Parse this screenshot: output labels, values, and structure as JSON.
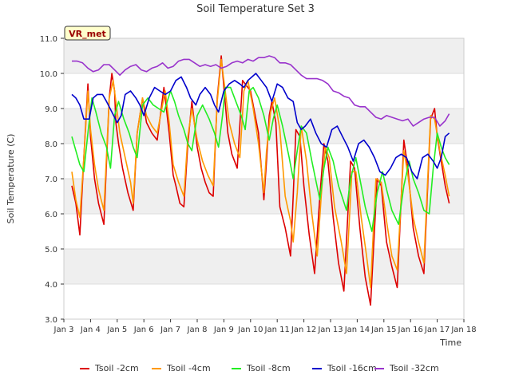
{
  "chart_data": {
    "type": "line",
    "title": "Soil Temperature Set 3",
    "xlabel": "Time",
    "ylabel": "Soil Temperature (C)",
    "station_label": "VR_met",
    "xlim": [
      3,
      18
    ],
    "ylim": [
      3.0,
      11.0
    ],
    "xticks": [
      {
        "x": 3,
        "label": "Jan 3"
      },
      {
        "x": 4,
        "label": "Jan 4"
      },
      {
        "x": 5,
        "label": "Jan 5"
      },
      {
        "x": 6,
        "label": "Jan 6"
      },
      {
        "x": 7,
        "label": "Jan 7"
      },
      {
        "x": 8,
        "label": "Jan 8"
      },
      {
        "x": 9,
        "label": "Jan 9"
      },
      {
        "x": 10,
        "label": "Jan 10"
      },
      {
        "x": 11,
        "label": "Jan 11"
      },
      {
        "x": 12,
        "label": "Jan 12"
      },
      {
        "x": 13,
        "label": "Jan 13"
      },
      {
        "x": 14,
        "label": "Jan 14"
      },
      {
        "x": 15,
        "label": "Jan 15"
      },
      {
        "x": 16,
        "label": "Jan 16"
      },
      {
        "x": 17,
        "label": "Jan 17"
      },
      {
        "x": 18,
        "label": "Jan 18"
      }
    ],
    "yticks": [
      {
        "y": 3.0,
        "label": "3.0"
      },
      {
        "y": 4.0,
        "label": "4.0"
      },
      {
        "y": 5.0,
        "label": "5.0"
      },
      {
        "y": 6.0,
        "label": "6.0"
      },
      {
        "y": 7.0,
        "label": "7.0"
      },
      {
        "y": 8.0,
        "label": "8.0"
      },
      {
        "y": 9.0,
        "label": "9.0"
      },
      {
        "y": 10.0,
        "label": "10.0"
      },
      {
        "y": 11.0,
        "label": "11.0"
      }
    ],
    "legend_position": "bottom",
    "series": [
      {
        "name": "Tsoil -2cm",
        "color": "#dd0000",
        "x": [
          3.3,
          3.45,
          3.6,
          3.75,
          3.9,
          4.0,
          4.15,
          4.3,
          4.5,
          4.7,
          4.8,
          4.9,
          4.95,
          5.05,
          5.2,
          5.4,
          5.6,
          5.75,
          5.95,
          6.1,
          6.3,
          6.5,
          6.75,
          6.95,
          7.1,
          7.2,
          7.35,
          7.5,
          7.65,
          7.8,
          8.0,
          8.15,
          8.3,
          8.45,
          8.6,
          8.75,
          8.9,
          9.0,
          9.15,
          9.3,
          9.5,
          9.7,
          9.8,
          9.9,
          10.0,
          10.1,
          10.3,
          10.5,
          10.6,
          10.7,
          10.8,
          10.95,
          11.1,
          11.3,
          11.5,
          11.6,
          11.7,
          11.85,
          12.0,
          12.2,
          12.4,
          12.6,
          12.75,
          12.9,
          13.1,
          13.3,
          13.5,
          13.75,
          13.9,
          14.1,
          14.3,
          14.5,
          14.75,
          14.9,
          15.1,
          15.3,
          15.5,
          15.75,
          15.9,
          16.1,
          16.3,
          16.5,
          16.75,
          16.9,
          17.0,
          17.15,
          17.3,
          17.45
        ],
        "y": [
          6.8,
          6.3,
          5.4,
          7.6,
          9.7,
          8.2,
          7.0,
          6.3,
          5.7,
          9.3,
          10.0,
          9.5,
          8.6,
          8.0,
          7.3,
          6.6,
          6.1,
          8.3,
          9.3,
          8.6,
          8.3,
          8.1,
          9.6,
          8.3,
          7.1,
          6.8,
          6.3,
          6.2,
          8.0,
          9.2,
          7.9,
          7.3,
          6.9,
          6.6,
          6.5,
          9.3,
          10.5,
          9.6,
          8.3,
          7.7,
          7.3,
          9.8,
          9.7,
          9.6,
          9.5,
          9.1,
          8.3,
          6.4,
          7.5,
          8.8,
          9.2,
          8.6,
          6.2,
          5.6,
          4.8,
          6.5,
          8.4,
          8.2,
          6.8,
          5.4,
          4.3,
          6.5,
          8.0,
          7.5,
          5.9,
          4.6,
          3.8,
          7.5,
          7.3,
          5.6,
          4.2,
          3.4,
          7.0,
          6.8,
          5.2,
          4.5,
          3.9,
          8.1,
          7.3,
          5.6,
          4.8,
          4.3,
          8.7,
          9.0,
          8.2,
          7.5,
          6.8,
          6.3
        ]
      },
      {
        "name": "Tsoil -4cm",
        "color": "#ff9900",
        "x": [
          3.3,
          3.45,
          3.6,
          3.75,
          3.9,
          4.0,
          4.15,
          4.3,
          4.5,
          4.7,
          4.85,
          4.95,
          5.1,
          5.3,
          5.5,
          5.6,
          5.75,
          5.95,
          6.1,
          6.3,
          6.5,
          6.8,
          6.95,
          7.1,
          7.3,
          7.5,
          7.65,
          7.8,
          8.0,
          8.2,
          8.4,
          8.6,
          8.75,
          8.9,
          9.0,
          9.2,
          9.4,
          9.6,
          9.75,
          9.9,
          10.1,
          10.3,
          10.5,
          10.6,
          10.75,
          10.9,
          11.1,
          11.3,
          11.5,
          11.6,
          11.75,
          11.9,
          12.1,
          12.3,
          12.5,
          12.65,
          12.8,
          12.95,
          13.15,
          13.4,
          13.6,
          13.8,
          13.95,
          14.15,
          14.35,
          14.5,
          14.7,
          14.9,
          15.1,
          15.3,
          15.5,
          15.75,
          15.9,
          16.1,
          16.3,
          16.5,
          16.75,
          16.9,
          17.1,
          17.3,
          17.45
        ],
        "y": [
          7.2,
          6.4,
          5.9,
          7.6,
          9.5,
          8.4,
          7.4,
          6.7,
          6.1,
          9.3,
          9.8,
          9.2,
          8.3,
          7.6,
          6.9,
          6.3,
          8.3,
          9.3,
          8.8,
          8.5,
          8.3,
          9.5,
          8.6,
          7.4,
          6.9,
          6.5,
          8.2,
          9.0,
          8.1,
          7.5,
          7.1,
          6.8,
          9.2,
          10.4,
          9.8,
          8.6,
          8.0,
          7.6,
          9.5,
          9.8,
          9.0,
          8.0,
          6.6,
          7.8,
          8.9,
          9.3,
          8.4,
          6.5,
          5.8,
          5.2,
          6.6,
          8.5,
          7.5,
          6.0,
          4.8,
          6.5,
          7.9,
          7.6,
          6.2,
          5.2,
          4.3,
          7.2,
          7.2,
          5.9,
          4.8,
          3.9,
          7.0,
          6.9,
          5.8,
          4.8,
          4.4,
          7.8,
          7.1,
          5.9,
          5.2,
          4.6,
          8.8,
          8.7,
          7.8,
          7.1,
          6.5
        ]
      },
      {
        "name": "Tsoil -8cm",
        "color": "#22ee22",
        "x": [
          3.3,
          3.45,
          3.6,
          3.75,
          3.9,
          4.05,
          4.2,
          4.4,
          4.6,
          4.75,
          4.9,
          5.05,
          5.25,
          5.45,
          5.6,
          5.75,
          5.95,
          6.15,
          6.35,
          6.55,
          6.75,
          7.0,
          7.15,
          7.3,
          7.5,
          7.65,
          7.8,
          8.0,
          8.2,
          8.45,
          8.65,
          8.8,
          8.95,
          9.05,
          9.25,
          9.45,
          9.65,
          9.8,
          9.95,
          10.1,
          10.3,
          10.5,
          10.7,
          10.85,
          11.0,
          11.2,
          11.45,
          11.6,
          11.75,
          11.9,
          12.1,
          12.3,
          12.6,
          12.75,
          12.9,
          13.1,
          13.3,
          13.6,
          13.75,
          13.95,
          14.1,
          14.3,
          14.55,
          14.75,
          14.95,
          15.1,
          15.3,
          15.55,
          15.75,
          15.95,
          16.1,
          16.3,
          16.5,
          16.7,
          16.85,
          17.0,
          17.15,
          17.3,
          17.45
        ],
        "y": [
          8.2,
          7.8,
          7.4,
          7.2,
          8.3,
          9.3,
          8.9,
          8.3,
          7.9,
          7.3,
          8.8,
          9.2,
          8.7,
          8.3,
          7.9,
          7.6,
          9.1,
          9.3,
          9.1,
          9.0,
          8.9,
          9.5,
          9.2,
          8.8,
          8.4,
          8.0,
          7.8,
          8.8,
          9.1,
          8.7,
          8.3,
          7.9,
          8.8,
          9.6,
          9.6,
          9.2,
          8.8,
          8.4,
          9.5,
          9.6,
          9.3,
          8.8,
          8.1,
          8.7,
          9.1,
          8.5,
          7.6,
          7.0,
          7.8,
          8.5,
          8.3,
          7.5,
          6.4,
          7.3,
          7.9,
          7.5,
          6.8,
          6.1,
          7.0,
          7.6,
          7.0,
          6.2,
          5.5,
          6.6,
          7.2,
          6.7,
          6.1,
          5.7,
          6.8,
          7.5,
          7.0,
          6.6,
          6.1,
          6.0,
          7.3,
          8.3,
          7.9,
          7.6,
          7.4
        ]
      },
      {
        "name": "Tsoil -16cm",
        "color": "#0000cc",
        "x": [
          3.3,
          3.45,
          3.6,
          3.75,
          3.95,
          4.1,
          4.25,
          4.45,
          4.6,
          4.8,
          5.0,
          5.15,
          5.3,
          5.5,
          5.7,
          5.85,
          6.0,
          6.2,
          6.4,
          6.6,
          6.8,
          7.0,
          7.2,
          7.4,
          7.6,
          7.75,
          7.95,
          8.1,
          8.3,
          8.5,
          8.65,
          8.8,
          9.0,
          9.2,
          9.4,
          9.6,
          9.75,
          9.9,
          10.05,
          10.2,
          10.4,
          10.6,
          10.8,
          11.0,
          11.2,
          11.4,
          11.6,
          11.75,
          11.9,
          12.05,
          12.25,
          12.45,
          12.65,
          12.85,
          13.05,
          13.25,
          13.45,
          13.65,
          13.85,
          14.05,
          14.25,
          14.45,
          14.65,
          14.85,
          15.05,
          15.25,
          15.45,
          15.65,
          15.85,
          16.05,
          16.25,
          16.45,
          16.65,
          16.85,
          17.0,
          17.15,
          17.3,
          17.45
        ],
        "y": [
          9.4,
          9.3,
          9.1,
          8.7,
          8.7,
          9.3,
          9.4,
          9.4,
          9.2,
          8.9,
          8.6,
          8.8,
          9.4,
          9.5,
          9.3,
          9.1,
          8.8,
          9.3,
          9.6,
          9.5,
          9.4,
          9.5,
          9.8,
          9.9,
          9.6,
          9.3,
          9.1,
          9.4,
          9.6,
          9.4,
          9.1,
          8.9,
          9.5,
          9.7,
          9.8,
          9.7,
          9.6,
          9.8,
          9.9,
          10.0,
          9.8,
          9.6,
          9.2,
          9.7,
          9.6,
          9.3,
          9.2,
          8.6,
          8.4,
          8.5,
          8.7,
          8.3,
          8.0,
          7.9,
          8.4,
          8.5,
          8.2,
          7.9,
          7.5,
          8.0,
          8.1,
          7.9,
          7.6,
          7.2,
          7.1,
          7.3,
          7.6,
          7.7,
          7.6,
          7.2,
          7.0,
          7.6,
          7.7,
          7.5,
          7.3,
          7.6,
          8.2,
          8.3
        ]
      },
      {
        "name": "Tsoil -32cm",
        "color": "#9933cc",
        "x": [
          3.3,
          3.5,
          3.7,
          3.9,
          4.1,
          4.3,
          4.5,
          4.7,
          4.9,
          5.1,
          5.3,
          5.5,
          5.7,
          5.9,
          6.1,
          6.3,
          6.5,
          6.7,
          6.9,
          7.1,
          7.3,
          7.5,
          7.7,
          7.9,
          8.1,
          8.3,
          8.5,
          8.7,
          8.9,
          9.1,
          9.3,
          9.5,
          9.7,
          9.9,
          10.1,
          10.3,
          10.5,
          10.7,
          10.9,
          11.1,
          11.3,
          11.5,
          11.7,
          11.9,
          12.1,
          12.3,
          12.5,
          12.7,
          12.9,
          13.1,
          13.3,
          13.5,
          13.7,
          13.9,
          14.1,
          14.3,
          14.5,
          14.7,
          14.9,
          15.1,
          15.3,
          15.5,
          15.7,
          15.9,
          16.1,
          16.3,
          16.5,
          16.7,
          16.9,
          17.1,
          17.3,
          17.45
        ],
        "y": [
          10.35,
          10.35,
          10.3,
          10.15,
          10.05,
          10.1,
          10.25,
          10.25,
          10.1,
          9.95,
          10.1,
          10.2,
          10.25,
          10.1,
          10.05,
          10.15,
          10.2,
          10.3,
          10.15,
          10.2,
          10.35,
          10.4,
          10.4,
          10.3,
          10.2,
          10.25,
          10.2,
          10.25,
          10.15,
          10.2,
          10.3,
          10.35,
          10.3,
          10.4,
          10.35,
          10.45,
          10.45,
          10.5,
          10.45,
          10.3,
          10.3,
          10.25,
          10.1,
          9.95,
          9.85,
          9.85,
          9.85,
          9.8,
          9.7,
          9.5,
          9.45,
          9.35,
          9.3,
          9.1,
          9.05,
          9.05,
          8.9,
          8.75,
          8.7,
          8.8,
          8.75,
          8.7,
          8.65,
          8.7,
          8.5,
          8.6,
          8.7,
          8.75,
          8.75,
          8.5,
          8.65,
          8.85
        ]
      }
    ]
  }
}
